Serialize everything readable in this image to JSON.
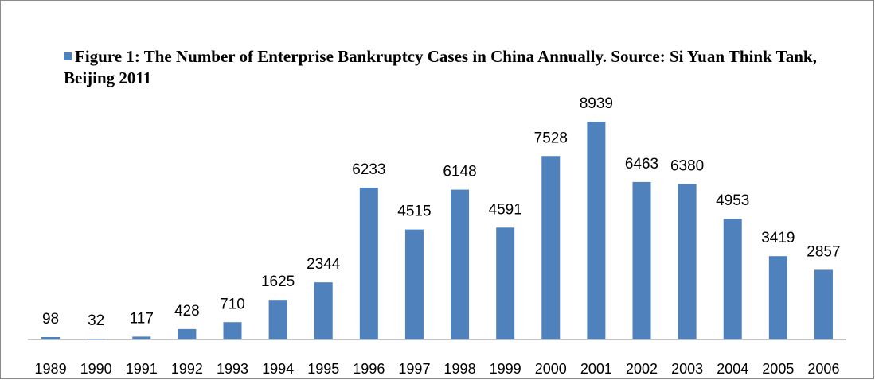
{
  "chart_data": {
    "type": "bar",
    "series": [
      {
        "name": "Figure 1: The Number of Enterprise Bankruptcy Cases in China Annually.  Source: Si Yuan Think Tank, Beijing 2011",
        "color": "#4f81bd",
        "values": [
          98,
          32,
          117,
          428,
          710,
          1625,
          2344,
          6233,
          4515,
          6148,
          4591,
          7528,
          8939,
          6463,
          6380,
          4953,
          3419,
          2857
        ]
      }
    ],
    "categories": [
      "1989",
      "1990",
      "1991",
      "1992",
      "1993",
      "1994",
      "1995",
      "1996",
      "1997",
      "1998",
      "1999",
      "2000",
      "2001",
      "2002",
      "2003",
      "2004",
      "2005",
      "2006"
    ],
    "ylim": [
      0,
      10000
    ]
  }
}
